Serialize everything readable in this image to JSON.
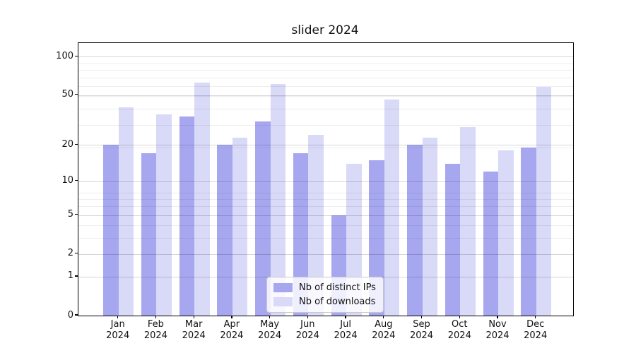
{
  "title": "slider 2024",
  "legend": {
    "entries": [
      {
        "label": "Nb of distinct IPs",
        "color": "#a7a7f0"
      },
      {
        "label": "Nb of downloads",
        "color": "#d9d9f8"
      }
    ]
  },
  "chart_data": {
    "type": "bar",
    "title": "slider 2024",
    "categories": [
      "Jan 2024",
      "Feb 2024",
      "Mar 2024",
      "Apr 2024",
      "May 2024",
      "Jun 2024",
      "Jul 2024",
      "Aug 2024",
      "Sep 2024",
      "Oct 2024",
      "Nov 2024",
      "Dec 2024"
    ],
    "x_tick_line1": [
      "Jan",
      "Feb",
      "Mar",
      "Apr",
      "May",
      "Jun",
      "Jul",
      "Aug",
      "Sep",
      "Oct",
      "Nov",
      "Dec"
    ],
    "x_tick_line2": [
      "2024",
      "2024",
      "2024",
      "2024",
      "2024",
      "2024",
      "2024",
      "2024",
      "2024",
      "2024",
      "2024",
      "2024"
    ],
    "series": [
      {
        "name": "Nb of distinct IPs",
        "color": "#a7a7f0",
        "values": [
          20,
          17,
          34,
          20,
          31,
          17,
          5,
          15,
          20,
          14,
          12,
          19
        ]
      },
      {
        "name": "Nb of downloads",
        "color": "#d9d9f8",
        "values": [
          40,
          35,
          63,
          23,
          61,
          24,
          14,
          46,
          23,
          28,
          18,
          58
        ]
      }
    ],
    "yscale": "log10(1+x)",
    "ylim": [
      0,
      128
    ],
    "y_ticks": [
      0,
      1,
      2,
      5,
      10,
      20,
      50,
      100
    ],
    "y_minor_gridlines": [
      3,
      4,
      6,
      7,
      8,
      19,
      29,
      39,
      49,
      59,
      69,
      79,
      89
    ],
    "grid": true,
    "legend_position": "lower center",
    "xlabel": "",
    "ylabel": ""
  }
}
